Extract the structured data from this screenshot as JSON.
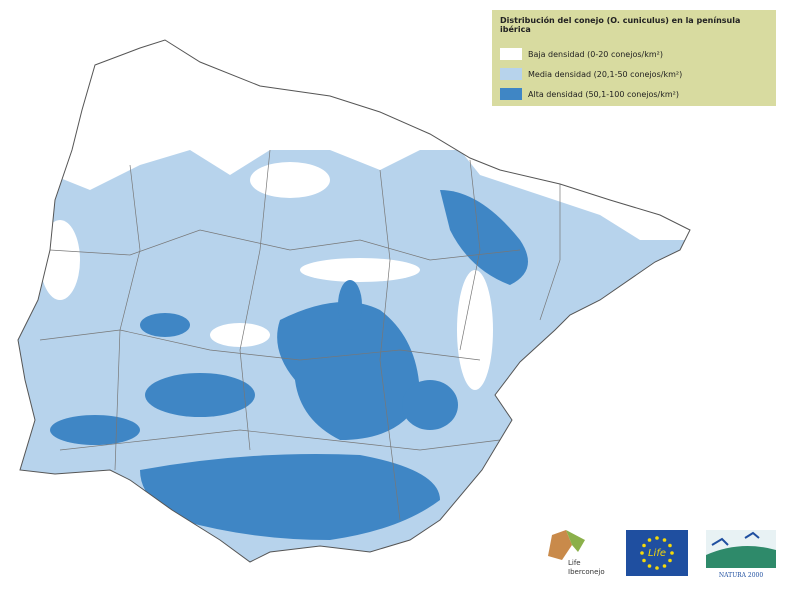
{
  "legend": {
    "title": "Distribución del conejo (O. cuniculus) en la península ibérica",
    "items": [
      {
        "label": "Baja densidad (0-20 conejos/km²)",
        "color": "#ffffff"
      },
      {
        "label": "Media densidad (20,1-50 conejos/km²)",
        "color": "#b7d3ec"
      },
      {
        "label": "Alta densidad (50,1-100 conejos/km²)",
        "color": "#3f86c5"
      }
    ]
  },
  "logos": {
    "life_iberconejo": [
      "Life",
      "Iberconejo"
    ],
    "eu_life": "Life",
    "natura": "NATURA 2000"
  }
}
